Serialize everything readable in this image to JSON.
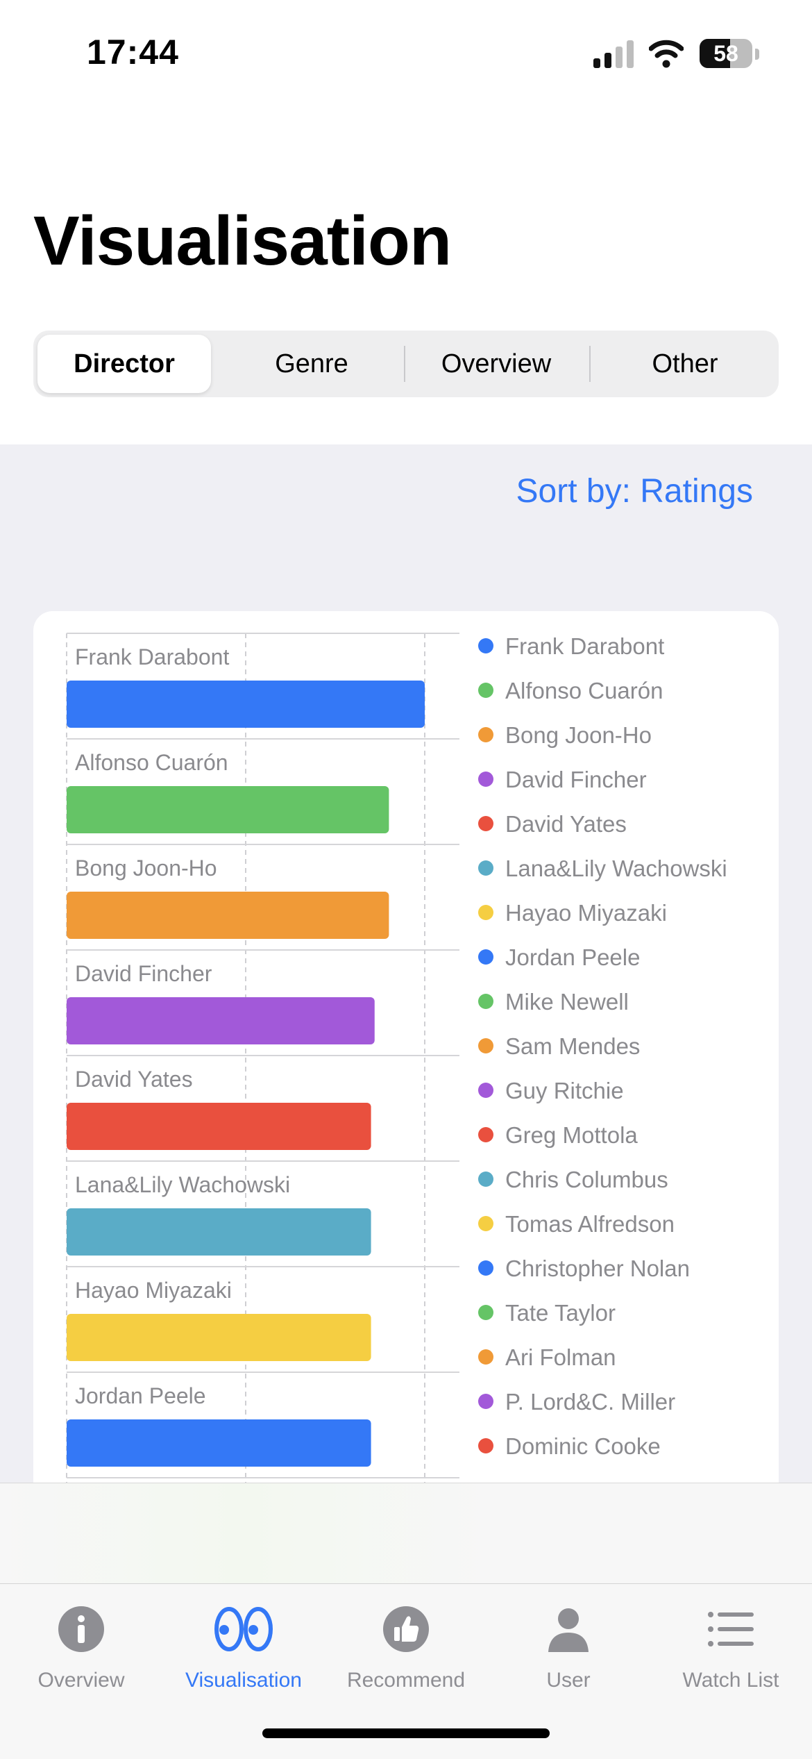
{
  "status_bar": {
    "time": "17:44",
    "battery": "58",
    "battery_level": 0.58
  },
  "page": {
    "title": "Visualisation"
  },
  "segments": [
    {
      "label": "Director",
      "selected": true
    },
    {
      "label": "Genre",
      "selected": false
    },
    {
      "label": "Overview",
      "selected": false
    },
    {
      "label": "Other",
      "selected": false
    }
  ],
  "sort_label": "Sort by: Ratings",
  "colors": {
    "accent": "#3478f6",
    "series": [
      "#3478f6",
      "#65c466",
      "#f09a37",
      "#a259d9",
      "#e9503e",
      "#5aacc7",
      "#f5ce42"
    ]
  },
  "chart_data": {
    "type": "bar",
    "orientation": "horizontal",
    "categories": [
      "Frank Darabont",
      "Alfonso Cuarón",
      "Bong Joon-Ho",
      "David Fincher",
      "David Yates",
      "Lana&Lily Wachowski",
      "Hayao Miyazaki",
      "Jordan Peele"
    ],
    "values": [
      10,
      9,
      9,
      8.6,
      8.5,
      8.5,
      8.5,
      8.5
    ],
    "xlim": [
      0,
      10
    ],
    "grid": true,
    "legend": {
      "position": "right",
      "entries": [
        "Frank Darabont",
        "Alfonso Cuarón",
        "Bong Joon-Ho",
        "David Fincher",
        "David Yates",
        "Lana&Lily Wachowski",
        "Hayao Miyazaki",
        "Jordan Peele",
        "Mike Newell",
        "Sam Mendes",
        "Guy Ritchie",
        "Greg Mottola",
        "Chris Columbus",
        "Tomas Alfredson",
        "Christopher Nolan",
        "Tate Taylor",
        "Ari Folman",
        "P. Lord&C. Miller",
        "Dominic Cooke"
      ]
    }
  },
  "tabs": [
    {
      "label": "Overview",
      "icon": "info-circle-icon",
      "active": false
    },
    {
      "label": "Visualisation",
      "icon": "eyes-icon",
      "active": true
    },
    {
      "label": "Recommend",
      "icon": "thumbs-up-icon",
      "active": false
    },
    {
      "label": "User",
      "icon": "person-icon",
      "active": false
    },
    {
      "label": "Watch List",
      "icon": "list-icon",
      "active": false
    }
  ]
}
